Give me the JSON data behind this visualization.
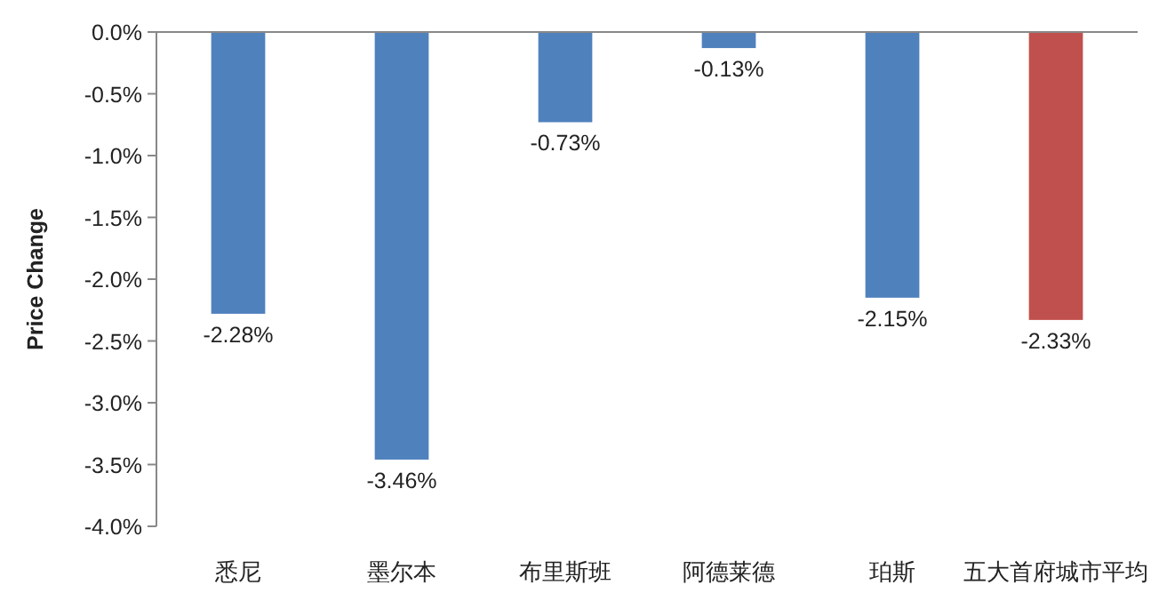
{
  "chart_data": {
    "type": "bar",
    "ylabel": "Price Change",
    "categories": [
      "悉尼",
      "墨尔本",
      "布里斯班",
      "阿德莱德",
      "珀斯",
      "五大首府城市平均"
    ],
    "values": [
      -2.28,
      -3.46,
      -0.73,
      -0.13,
      -2.15,
      -2.33
    ],
    "colors": [
      "#4f81bd",
      "#4f81bd",
      "#4f81bd",
      "#4f81bd",
      "#4f81bd",
      "#c0504d"
    ],
    "value_labels": [
      "-2.28%",
      "-3.46%",
      "-0.73%",
      "-0.13%",
      "-2.15%",
      "-2.33%"
    ],
    "ylim": [
      -4,
      0
    ],
    "yticks": [
      {
        "value": 0,
        "label": "0.0%"
      },
      {
        "value": -0.5,
        "label": "-0.5%"
      },
      {
        "value": -1,
        "label": "-1.0%"
      },
      {
        "value": -1.5,
        "label": "-1.5%"
      },
      {
        "value": -2,
        "label": "-2.0%"
      },
      {
        "value": -2.5,
        "label": "-2.5%"
      },
      {
        "value": -3,
        "label": "-3.0%"
      },
      {
        "value": -3.5,
        "label": "-3.5%"
      },
      {
        "value": -4,
        "label": "-4.0%"
      }
    ],
    "grid": false
  }
}
